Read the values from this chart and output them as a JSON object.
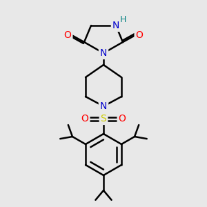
{
  "bg_color": "#e8e8e8",
  "atom_colors": {
    "C": "#000000",
    "N": "#0000cc",
    "O": "#ff0000",
    "S": "#cccc00",
    "H": "#008080"
  },
  "bond_color": "#000000",
  "bond_width": 1.8,
  "font_size_atom": 10,
  "font_size_h": 9
}
